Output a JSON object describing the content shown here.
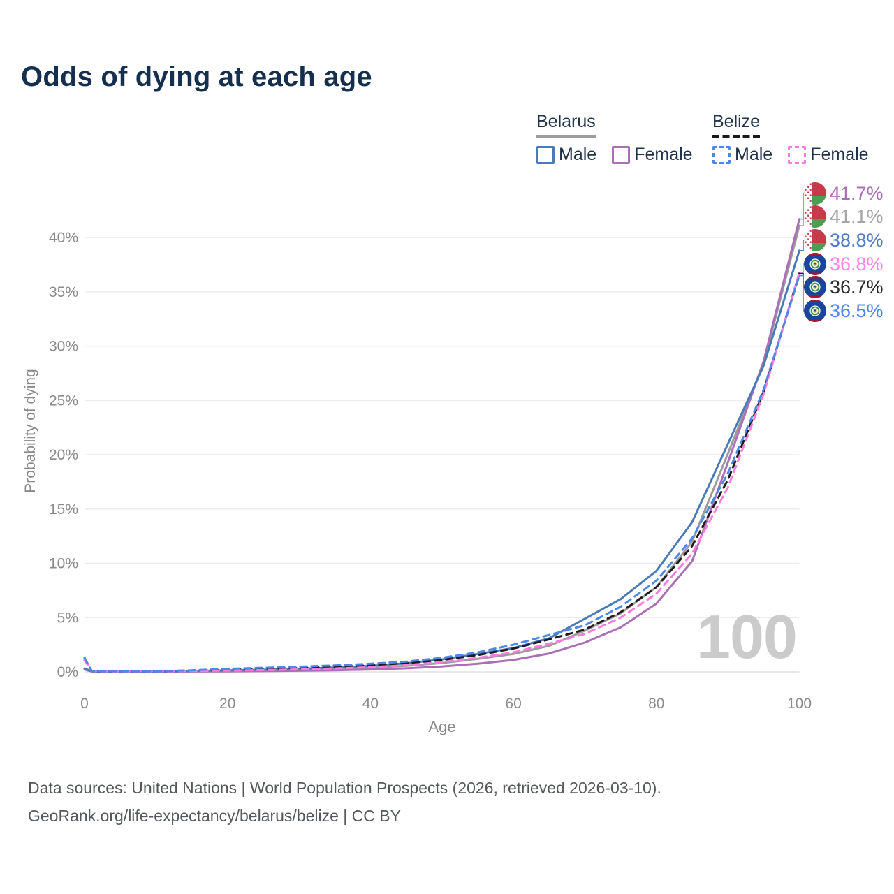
{
  "title": "Odds of dying at each age",
  "watermark": "100",
  "legend": {
    "belarus": {
      "name": "Belarus",
      "male": "Male",
      "female": "Female"
    },
    "belize": {
      "name": "Belize",
      "male": "Male",
      "female": "Female"
    }
  },
  "footer": {
    "line1": "Data sources: United Nations | World Population Prospects (2026, retrieved 2026-03-10).",
    "line2": "GeoRank.org/life-expectancy/belarus/belize | CC BY"
  },
  "colors": {
    "title_text": "#15304e",
    "axis_text": "#8a8a8a",
    "gridline": "#ececec",
    "belarus_underline": "#9e9e9e",
    "belize_underline": "#1a1a1a",
    "watermark": "#cbcbcb",
    "footer_text": "#54575b"
  },
  "chart_data": {
    "type": "line",
    "title": "Odds of dying at each age",
    "xlabel": "Age",
    "ylabel": "Probability of dying",
    "xlim": [
      0,
      100
    ],
    "ylim_percent": [
      0,
      44
    ],
    "grid": "horizontal-only",
    "legend_position": "top-right",
    "x_ticks": [
      "0",
      "20",
      "40",
      "60",
      "80",
      "100"
    ],
    "x_tick_values": [
      0,
      20,
      40,
      60,
      80,
      100
    ],
    "y_tick_labels": [
      "0%",
      "5%",
      "10%",
      "15%",
      "20%",
      "25%",
      "30%",
      "35%",
      "40%"
    ],
    "y_tick_values": [
      0,
      5,
      10,
      15,
      20,
      25,
      30,
      35,
      40
    ],
    "x": [
      0,
      1,
      2,
      5,
      10,
      15,
      20,
      25,
      30,
      35,
      40,
      45,
      50,
      55,
      60,
      65,
      70,
      75,
      80,
      85,
      90,
      95,
      100
    ],
    "series": [
      {
        "id": "belarus-combined",
        "name": "Belarus",
        "sex": "Combined",
        "line": "solid",
        "color": "#9b9b9b",
        "values": [
          0.27,
          0.045,
          0.025,
          0.025,
          0.025,
          0.06,
          0.1,
          0.13,
          0.19,
          0.27,
          0.38,
          0.56,
          0.82,
          1.2,
          1.65,
          2.4,
          3.8,
          5.4,
          7.8,
          12.0,
          20.1,
          28.4,
          41.1
        ],
        "end_label": "41.1%",
        "end_label_color": "#a6a6a6",
        "flag": "belarus",
        "label_row": 1
      },
      {
        "id": "belarus-female",
        "name": "Belarus",
        "sex": "Female",
        "line": "solid",
        "color": "#ab6fb5",
        "values": [
          0.22,
          0.04,
          0.02,
          0.02,
          0.02,
          0.04,
          0.05,
          0.07,
          0.1,
          0.15,
          0.22,
          0.33,
          0.5,
          0.75,
          1.1,
          1.7,
          2.7,
          4.1,
          6.3,
          10.2,
          19.3,
          28.6,
          41.7
        ],
        "end_label": "41.7%",
        "end_label_color": "#a86fb4",
        "flag": "belarus",
        "label_row": 0
      },
      {
        "id": "belarus-male",
        "name": "Belarus",
        "sex": "Male",
        "line": "solid",
        "color": "#4a7ab8",
        "values": [
          0.32,
          0.05,
          0.03,
          0.03,
          0.03,
          0.08,
          0.14,
          0.2,
          0.28,
          0.4,
          0.55,
          0.8,
          1.15,
          1.65,
          2.2,
          3.1,
          4.9,
          6.7,
          9.3,
          13.8,
          21.0,
          28.2,
          38.8
        ],
        "end_label": "38.8%",
        "end_label_color": "#4d7bca",
        "flag": "belarus",
        "label_row": 2
      },
      {
        "id": "belize-combined",
        "name": "Belize",
        "sex": "Combined",
        "line": "dashed",
        "color": "#1c1c1c",
        "values": [
          1.2,
          0.09,
          0.06,
          0.045,
          0.055,
          0.12,
          0.2,
          0.28,
          0.36,
          0.46,
          0.6,
          0.8,
          1.1,
          1.55,
          2.15,
          3.0,
          3.9,
          5.5,
          7.8,
          11.6,
          17.7,
          25.8,
          36.7
        ],
        "end_label": "36.7%",
        "end_label_color": "#2b2b2b",
        "flag": "belize",
        "label_row": 4
      },
      {
        "id": "belize-female",
        "name": "Belize",
        "sex": "Female",
        "line": "dashed",
        "color": "#fb7be0",
        "values": [
          1.1,
          0.08,
          0.05,
          0.04,
          0.05,
          0.08,
          0.12,
          0.17,
          0.23,
          0.32,
          0.44,
          0.62,
          0.9,
          1.3,
          1.8,
          2.6,
          3.5,
          5.0,
          7.2,
          10.9,
          17.0,
          25.6,
          36.8
        ],
        "end_label": "36.8%",
        "end_label_color": "#ff84e8",
        "flag": "belize",
        "label_row": 3
      },
      {
        "id": "belize-male",
        "name": "Belize",
        "sex": "Male",
        "line": "dashed",
        "color": "#4d87ea",
        "values": [
          1.3,
          0.1,
          0.07,
          0.05,
          0.06,
          0.15,
          0.28,
          0.38,
          0.48,
          0.6,
          0.75,
          0.95,
          1.3,
          1.8,
          2.5,
          3.4,
          4.3,
          6.0,
          8.4,
          12.3,
          18.3,
          26.0,
          36.5
        ],
        "end_label": "36.5%",
        "end_label_color": "#4f88ec",
        "flag": "belize",
        "label_row": 5
      }
    ],
    "end_labels_top_to_bottom": [
      "41.7%",
      "41.1%",
      "38.8%",
      "36.8%",
      "36.7%",
      "36.5%"
    ]
  }
}
